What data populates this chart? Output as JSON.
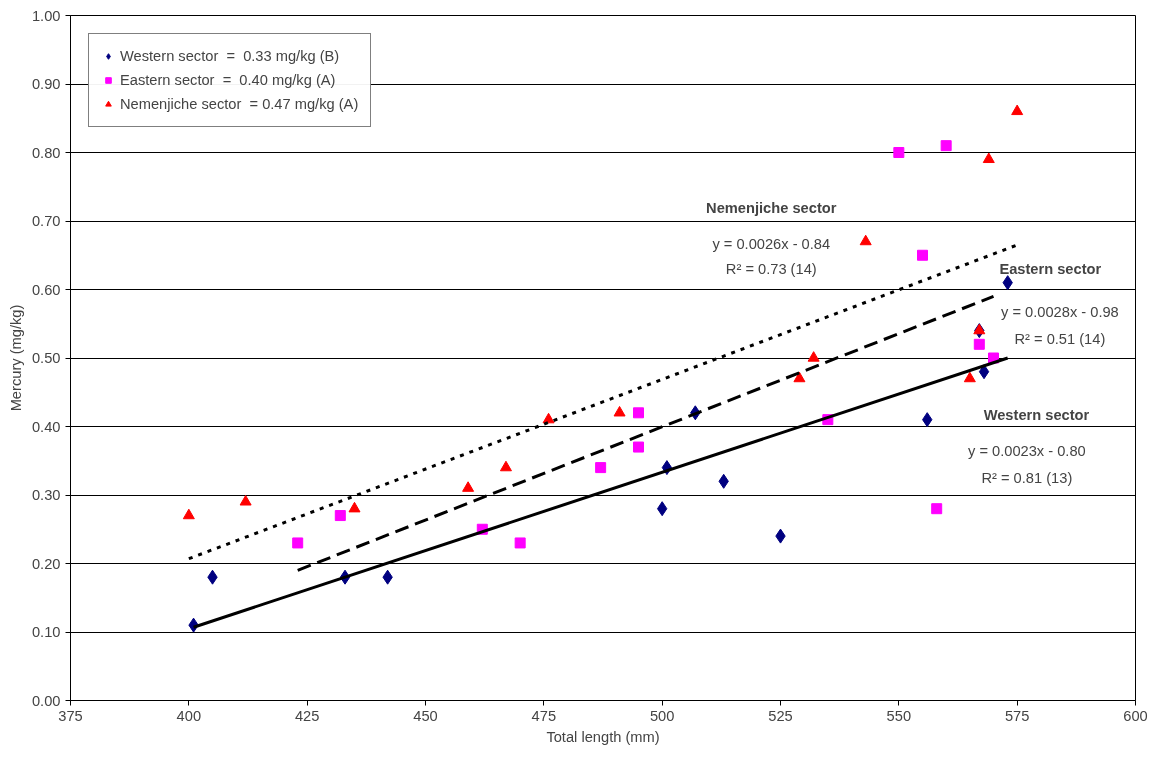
{
  "chart_data": {
    "type": "scatter",
    "xlabel": "Total length (mm)",
    "ylabel": "Mercury (mg/kg)",
    "xlim": [
      375,
      600
    ],
    "xticks": [
      375,
      400,
      425,
      450,
      475,
      500,
      525,
      550,
      575,
      600
    ],
    "ylim": [
      0,
      1
    ],
    "yticks": [
      {
        "value": 0,
        "label": "0.00"
      },
      {
        "value": 0.1,
        "label": "0.10"
      },
      {
        "value": 0.2,
        "label": "0.20"
      },
      {
        "value": 0.3,
        "label": "0.30"
      },
      {
        "value": 0.4,
        "label": "0.40"
      },
      {
        "value": 0.5,
        "label": "0.50"
      },
      {
        "value": 0.6,
        "label": "0.60"
      },
      {
        "value": 0.7,
        "label": "0.70"
      },
      {
        "value": 0.8,
        "label": "0.80"
      },
      {
        "value": 0.9,
        "label": "0.90"
      },
      {
        "value": 1,
        "label": "1.00"
      }
    ],
    "grid": "y",
    "legend": "top left",
    "series": [
      {
        "name": "Western sector  =  0.33 mg/kg (B)",
        "color": "#000080",
        "marker": "diamond",
        "x": [
          401,
          405,
          433,
          442,
          500,
          501,
          507,
          513,
          525,
          556,
          567,
          568,
          573
        ],
        "values": [
          0.11,
          0.18,
          0.18,
          0.18,
          0.28,
          0.34,
          0.42,
          0.32,
          0.24,
          0.41,
          0.54,
          0.48,
          0.61
        ]
      },
      {
        "name": "Eastern sector  =  0.40 mg/kg (A)",
        "color": "#ff00ff",
        "marker": "square",
        "x": [
          423,
          432,
          462,
          470,
          487,
          495,
          495,
          535,
          550,
          555,
          558,
          560,
          567,
          570
        ],
        "values": [
          0.23,
          0.27,
          0.25,
          0.23,
          0.34,
          0.42,
          0.37,
          0.41,
          0.8,
          0.65,
          0.28,
          0.81,
          0.52,
          0.5
        ]
      },
      {
        "name": "Nemenjiche sector  = 0.47 mg/kg (A)",
        "color": "#ff0000",
        "marker": "triangle",
        "x": [
          400,
          412,
          435,
          459,
          467,
          476,
          491,
          529,
          532,
          543,
          565,
          567,
          569,
          575
        ],
        "values": [
          0.27,
          0.29,
          0.28,
          0.31,
          0.34,
          0.41,
          0.42,
          0.47,
          0.5,
          0.67,
          0.47,
          0.54,
          0.79,
          0.86
        ]
      },
      {
        "type": "line",
        "color": "#000000",
        "line_style": "solid",
        "x": [
          401,
          573
        ],
        "values": [
          0.107,
          0.5
        ]
      },
      {
        "type": "line",
        "color": "#000000",
        "line_style": "dashed",
        "x": [
          423,
          570
        ],
        "values": [
          0.19,
          0.59
        ]
      },
      {
        "type": "line",
        "color": "#000000",
        "line_style": "dotted",
        "x": [
          400,
          575
        ],
        "values": [
          0.207,
          0.665
        ]
      }
    ],
    "annotations": [
      "Nemenjiche sector",
      "y = 0.0026x - 0.84",
      "R² = 0.73 (14)",
      "Eastern sector",
      "y = 0.0028x - 0.98",
      "R² = 0.51 (14)",
      "Western sector",
      "y = 0.0023x - 0.80",
      "R² = 0.81 (13)"
    ]
  }
}
